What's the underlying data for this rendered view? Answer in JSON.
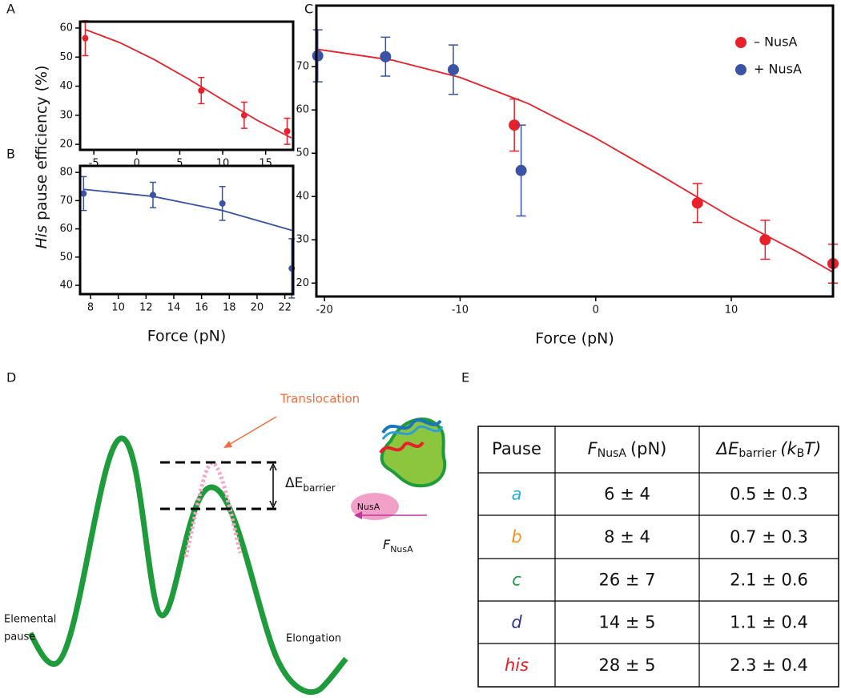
{
  "panel_labels": [
    "A",
    "B",
    "C",
    "D",
    "E"
  ],
  "y_label": {
    "italic": "His",
    "text": "pause efficiency (%)"
  },
  "chart_data": [
    {
      "type": "scatter",
      "xlim": [
        -6.6,
        18.2
      ],
      "ylim": [
        18.1,
        62.2
      ],
      "xticks": [
        -5,
        0,
        5,
        10,
        15
      ],
      "yticks": [
        20,
        30,
        40,
        50,
        60
      ],
      "series": [
        {
          "color": "#e8202a",
          "x": [
            -6,
            7.5,
            12.5,
            17.5
          ],
          "values": [
            56.5,
            38.5,
            30,
            24.5
          ],
          "errors": [
            6,
            4.5,
            4.5,
            4.5
          ],
          "fit": {
            "x": [
              -6,
              -2,
              2,
              6,
              10,
              14,
              18
            ],
            "y": [
              59.5,
              55,
              49.2,
              42.5,
              35.3,
              28.3,
              22.2
            ]
          }
        }
      ]
    },
    {
      "type": "scatter",
      "xlim": [
        7.25,
        22.6
      ],
      "ylim": [
        36.9,
        82.3
      ],
      "xticks": [
        8,
        10,
        12,
        14,
        16,
        18,
        20,
        22
      ],
      "yticks": [
        40,
        50,
        60,
        70,
        80
      ],
      "xlabel": "Force (pN)",
      "series": [
        {
          "color": "#3a53a4",
          "x": [
            7.5,
            12.5,
            17.5,
            22.5
          ],
          "values": [
            72.5,
            72,
            69,
            46
          ],
          "errors": [
            6,
            4.5,
            6,
            10.5
          ],
          "fit": {
            "x": [
              7.5,
              12.5,
              17.5,
              22.5
            ],
            "y": [
              74,
              71.5,
              66.5,
              59.5
            ]
          }
        }
      ]
    },
    {
      "type": "scatter",
      "xlim": [
        -20.6,
        17.5
      ],
      "ylim": [
        16.9,
        84.1
      ],
      "xticks": [
        -20,
        -10,
        0,
        10
      ],
      "yticks": [
        20,
        30,
        40,
        50,
        60,
        70
      ],
      "xlabel": "Force (pN)",
      "legend": "upper right",
      "series": [
        {
          "name": "– NusA",
          "color": "#e8202a",
          "x": [
            -6,
            7.5,
            12.5,
            17.5
          ],
          "values": [
            56.5,
            38.5,
            30,
            24.5
          ],
          "errors": [
            6,
            4.5,
            4.5,
            4.5
          ],
          "fit": {
            "x": [
              -20.5,
              -15,
              -10,
              -5,
              0,
              5,
              10,
              15,
              17.5
            ],
            "y": [
              74,
              71.5,
              67.5,
              61.5,
              53.5,
              44.5,
              35.2,
              27,
              22.5
            ]
          }
        },
        {
          "name": "+ NusA",
          "color": "#3a53a4",
          "x": [
            -20.5,
            -15.5,
            -10.5,
            -5.5
          ],
          "values": [
            72.5,
            72.3,
            69.3,
            46
          ],
          "errors": [
            6,
            4.5,
            5.7,
            10.5
          ]
        }
      ]
    }
  ],
  "diagram": {
    "translocation": "Translocation",
    "delta_e": {
      "main": "ΔE",
      "sub": "barrier"
    },
    "nusa": "NusA",
    "force": {
      "main": "F",
      "sub": "NusA"
    },
    "elemental_pause": [
      "Elemental",
      "pause"
    ],
    "elongation": "Elongation"
  },
  "table": {
    "header": [
      [
        "Pause"
      ],
      [
        "F",
        "NusA",
        "(pN)"
      ],
      [
        "ΔE",
        "barrier",
        "(k",
        "B",
        "T)"
      ]
    ],
    "rows": [
      [
        "a",
        "6 ± 4",
        "0.5 ± 0.3"
      ],
      [
        "b",
        "8 ± 4",
        "0.7 ± 0.3"
      ],
      [
        "c",
        "26 ± 7",
        "2.1 ± 0.6"
      ],
      [
        "d",
        "14 ± 5",
        "1.1 ± 0.4"
      ],
      [
        "his",
        "28 ± 5",
        "2.3 ± 0.4"
      ]
    ],
    "row_colors": [
      "#27aae1",
      "#f7941d",
      "#1a9a4a",
      "#2e3192",
      "#ed1c24"
    ]
  }
}
